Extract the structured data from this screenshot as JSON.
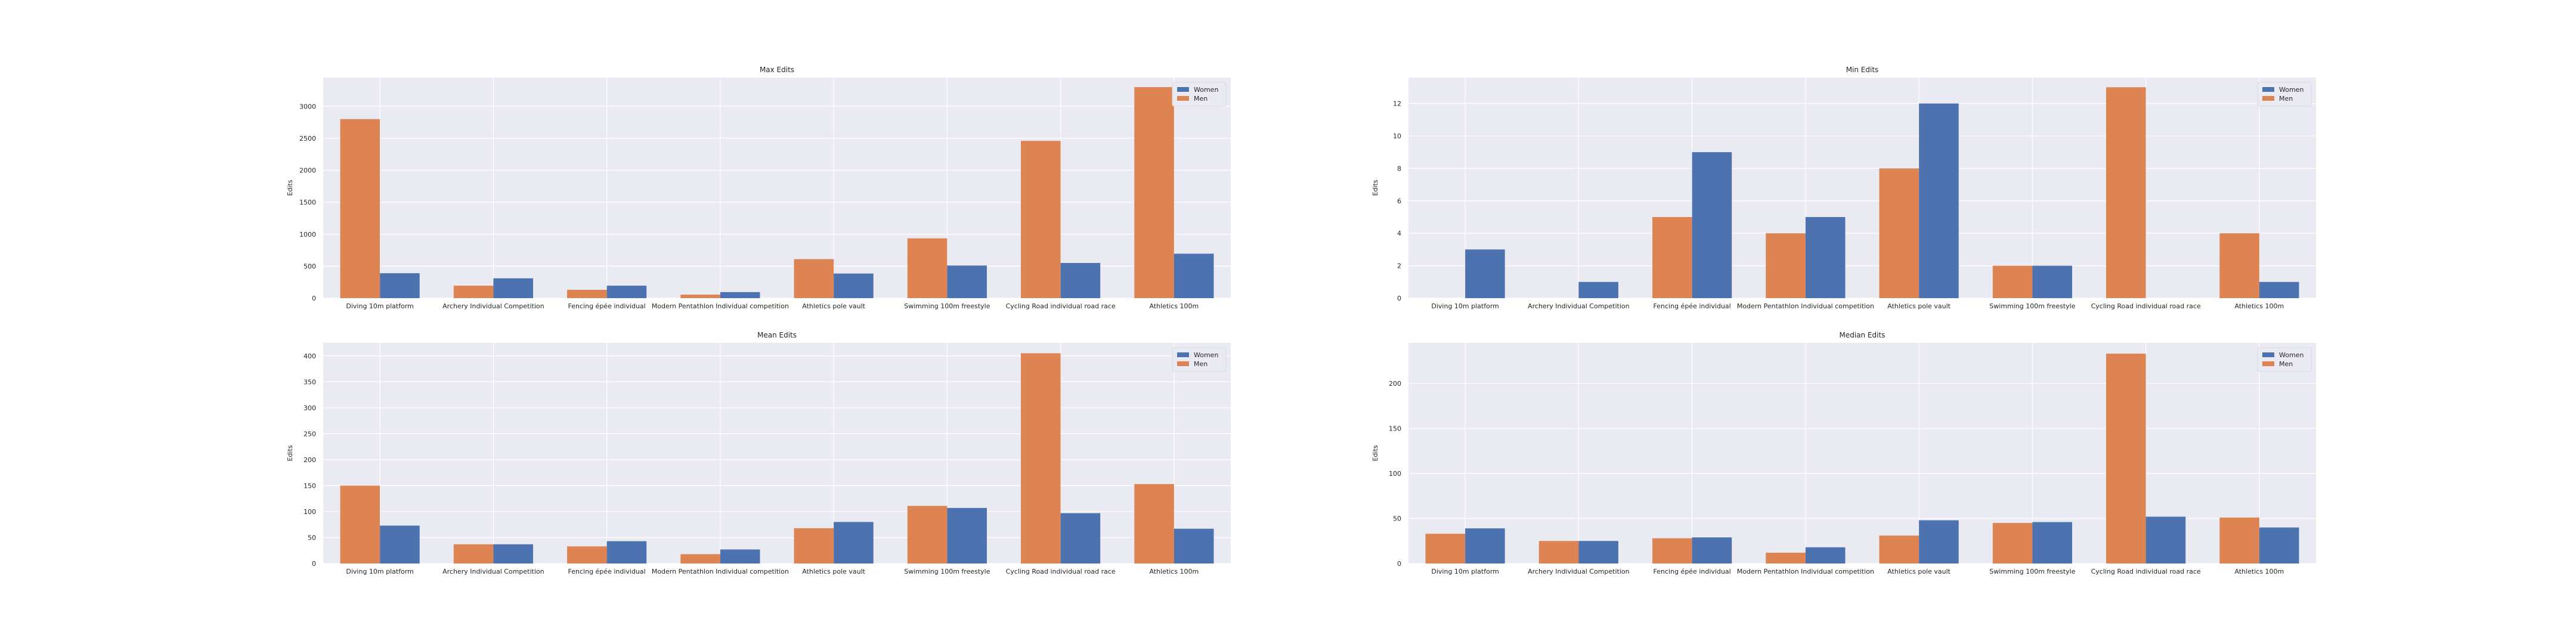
{
  "chart_data": [
    {
      "type": "bar",
      "title": "Max Edits",
      "ylabel": "Edits",
      "xlabel": "",
      "categories": [
        "Diving 10m platform",
        "Archery Individual Competition",
        "Fencing épée individual",
        "Modern Pentathlon Individual competition",
        "Athletics pole vault",
        "Swimming 100m freestyle",
        "Cycling Road individual road race",
        "Athletics 100m"
      ],
      "series": [
        {
          "name": "Men",
          "color": "#dd8452",
          "values": [
            2800,
            195,
            130,
            55,
            610,
            935,
            2460,
            3300
          ]
        },
        {
          "name": "Women",
          "color": "#4c72b0",
          "values": [
            390,
            310,
            195,
            95,
            385,
            510,
            550,
            695
          ]
        }
      ],
      "ylim": [
        0,
        3450
      ],
      "yticks": [
        0,
        500,
        1000,
        1500,
        2000,
        2500,
        3000
      ],
      "legend": [
        "Women",
        "Men"
      ],
      "legend_position": "top-right",
      "grid": true
    },
    {
      "type": "bar",
      "title": "Min Edits",
      "ylabel": "Edits",
      "xlabel": "",
      "categories": [
        "Diving 10m platform",
        "Archery Individual Competition",
        "Fencing épée individual",
        "Modern Pentathlon Individual competition",
        "Athletics pole vault",
        "Swimming 100m freestyle",
        "Cycling Road individual road race",
        "Athletics 100m"
      ],
      "series": [
        {
          "name": "Men",
          "color": "#dd8452",
          "values": [
            0,
            0,
            5,
            4,
            8,
            2,
            13,
            4
          ]
        },
        {
          "name": "Women",
          "color": "#4c72b0",
          "values": [
            3,
            1,
            9,
            5,
            12,
            2,
            0,
            1
          ]
        }
      ],
      "ylim": [
        0,
        13.6
      ],
      "yticks": [
        0,
        2,
        4,
        6,
        8,
        10,
        12
      ],
      "legend": [
        "Women",
        "Men"
      ],
      "legend_position": "top-right",
      "grid": true
    },
    {
      "type": "bar",
      "title": "Mean Edits",
      "ylabel": "Edits",
      "xlabel": "",
      "categories": [
        "Diving 10m platform",
        "Archery Individual Competition",
        "Fencing épée individual",
        "Modern Pentathlon Individual competition",
        "Athletics pole vault",
        "Swimming 100m freestyle",
        "Cycling Road individual road race",
        "Athletics 100m"
      ],
      "series": [
        {
          "name": "Men",
          "color": "#dd8452",
          "values": [
            150,
            37,
            33,
            18,
            68,
            111,
            405,
            153
          ]
        },
        {
          "name": "Women",
          "color": "#4c72b0",
          "values": [
            73,
            37,
            43,
            27,
            80,
            107,
            97,
            67
          ]
        }
      ],
      "ylim": [
        0,
        425
      ],
      "yticks": [
        0,
        50,
        100,
        150,
        200,
        250,
        300,
        350,
        400
      ],
      "legend": [
        "Women",
        "Men"
      ],
      "legend_position": "top-right",
      "grid": true
    },
    {
      "type": "bar",
      "title": "Median Edits",
      "ylabel": "Edits",
      "xlabel": "",
      "categories": [
        "Diving 10m platform",
        "Archery Individual Competition",
        "Fencing épée individual",
        "Modern Pentathlon Individual competition",
        "Athletics pole vault",
        "Swimming 100m freestyle",
        "Cycling Road individual road race",
        "Athletics 100m"
      ],
      "series": [
        {
          "name": "Men",
          "color": "#dd8452",
          "values": [
            33,
            25,
            28,
            12,
            31,
            45,
            233,
            51
          ]
        },
        {
          "name": "Women",
          "color": "#4c72b0",
          "values": [
            39,
            25,
            29,
            18,
            48,
            46,
            52,
            40
          ]
        }
      ],
      "ylim": [
        0,
        245
      ],
      "yticks": [
        0,
        50,
        100,
        150,
        200
      ],
      "legend": [
        "Women",
        "Men"
      ],
      "legend_position": "top-right",
      "grid": true
    }
  ],
  "style": {
    "background": "#ffffff",
    "plot_bg": "#eaeaf2",
    "grid_color": "#ffffff",
    "text_color": "#262626"
  }
}
